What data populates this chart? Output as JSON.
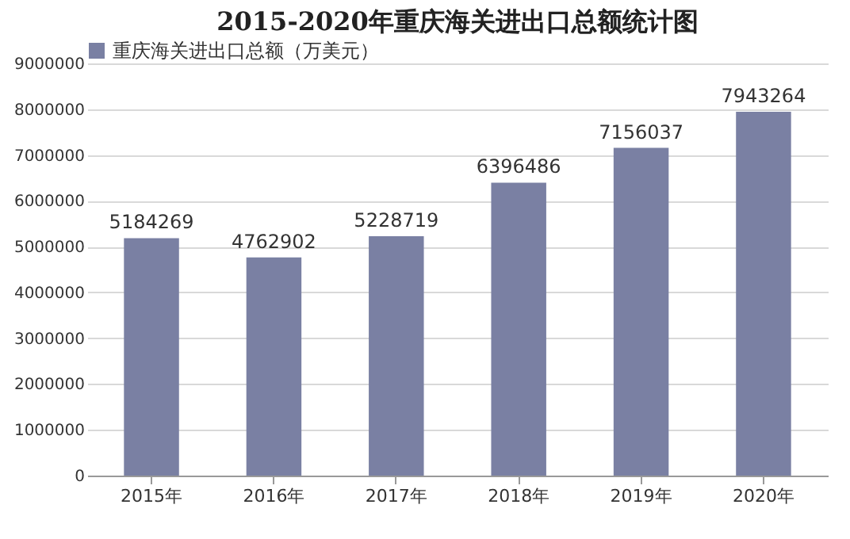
{
  "chart_data": {
    "type": "bar",
    "title": "2015-2020年重庆海关进出口总额统计图",
    "categories": [
      "2015年",
      "2016年",
      "2017年",
      "2018年",
      "2019年",
      "2020年"
    ],
    "series": [
      {
        "name": "重庆海关进出口总额（万美元）",
        "color": "#7a80a3",
        "values": [
          5184269,
          4762902,
          5228719,
          6396486,
          7156037,
          7943264
        ]
      }
    ],
    "ylim": [
      0,
      9000000
    ],
    "yticks": [
      0,
      1000000,
      2000000,
      3000000,
      4000000,
      5000000,
      6000000,
      7000000,
      8000000,
      9000000
    ],
    "grid": "y",
    "legend": "top",
    "data_labels": true
  }
}
